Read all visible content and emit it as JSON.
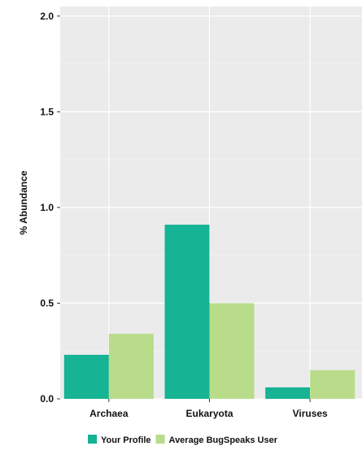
{
  "chart_data": {
    "type": "bar",
    "title": "",
    "xlabel": "",
    "ylabel": "% Abundance",
    "categories": [
      "Archaea",
      "Eukaryota",
      "Viruses"
    ],
    "series": [
      {
        "name": "Your Profile",
        "values": [
          0.23,
          0.91,
          0.06
        ],
        "color": "#16b394"
      },
      {
        "name": "Average BugSpeaks User",
        "values": [
          0.34,
          0.5,
          0.15
        ],
        "color": "#b8dc8a"
      }
    ],
    "ylim": [
      0,
      2.05
    ],
    "yticks": [
      0.0,
      0.5,
      1.0,
      1.5,
      2.0
    ],
    "ytick_labels": [
      "0.0",
      "0.5",
      "1.0",
      "1.5",
      "2.0"
    ],
    "grid": true,
    "legend_position": "bottom",
    "panel_background": "#ebebeb",
    "grid_color": "#ffffff"
  }
}
